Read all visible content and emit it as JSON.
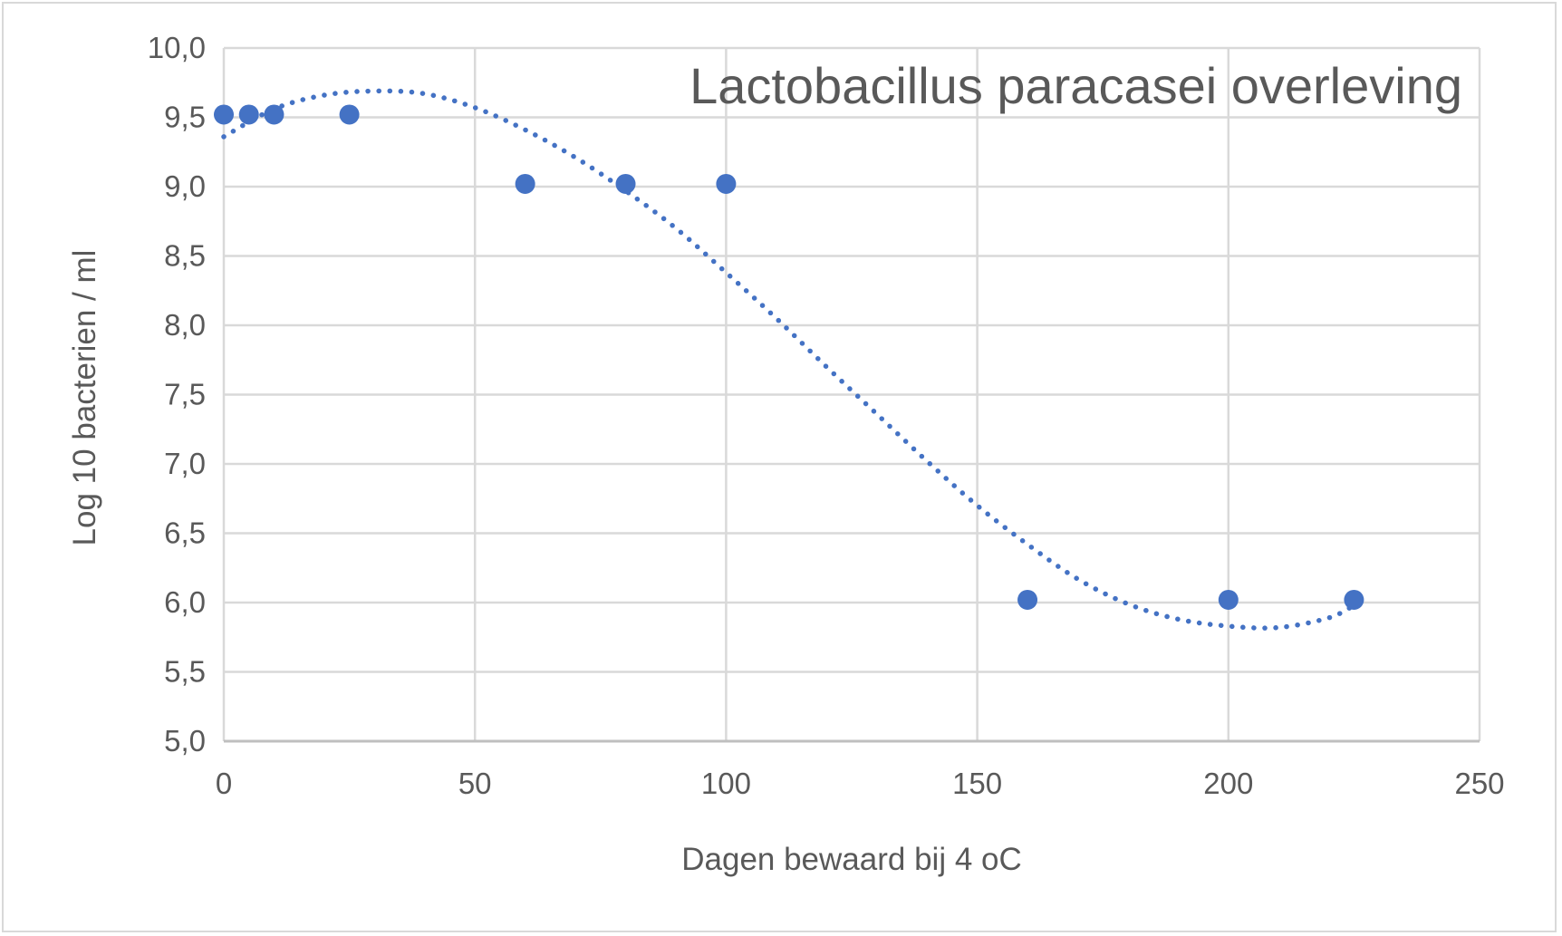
{
  "chart_data": {
    "type": "scatter",
    "title": "Lactobacillus paracasei overleving",
    "xlabel": "Dagen bewaard bij 4 oC",
    "ylabel": "Log 10 bacterien / ml",
    "xlim": [
      0,
      250
    ],
    "ylim": [
      5.0,
      10.0
    ],
    "x_ticks": [
      0,
      50,
      100,
      150,
      200,
      250
    ],
    "x_tick_labels": [
      "0",
      "50",
      "100",
      "150",
      "200",
      "250"
    ],
    "y_ticks": [
      5.0,
      5.5,
      6.0,
      6.5,
      7.0,
      7.5,
      8.0,
      8.5,
      9.0,
      9.5,
      10.0
    ],
    "y_tick_labels": [
      "5,0",
      "5,5",
      "6,0",
      "6,5",
      "7,0",
      "7,5",
      "8,0",
      "8,5",
      "9,0",
      "9,5",
      "10,0"
    ],
    "grid": true,
    "legend": "none",
    "series": [
      {
        "x": [
          0,
          5,
          10,
          25,
          60,
          80,
          100,
          160,
          200,
          225
        ],
        "y": [
          9.52,
          9.52,
          9.52,
          9.52,
          9.02,
          9.02,
          9.02,
          6.02,
          6.02,
          6.02
        ],
        "marker_color": "#4472c4"
      }
    ],
    "trendline": {
      "style": "dotted",
      "color": "#4472c4",
      "x": [
        0,
        10,
        20,
        30,
        40,
        50,
        60,
        70,
        80,
        90,
        100,
        110,
        120,
        130,
        140,
        150,
        160,
        170,
        180,
        190,
        200,
        210,
        220,
        225
      ],
      "y": [
        9.36,
        9.56,
        9.66,
        9.69,
        9.67,
        9.57,
        9.41,
        9.21,
        8.97,
        8.7,
        8.38,
        8.05,
        7.7,
        7.36,
        7.02,
        6.7,
        6.42,
        6.17,
        5.99,
        5.88,
        5.83,
        5.82,
        5.89,
        5.98
      ]
    },
    "colors": {
      "grid": "#d9d9d9",
      "text": "#595959",
      "marker": "#4472c4"
    }
  }
}
